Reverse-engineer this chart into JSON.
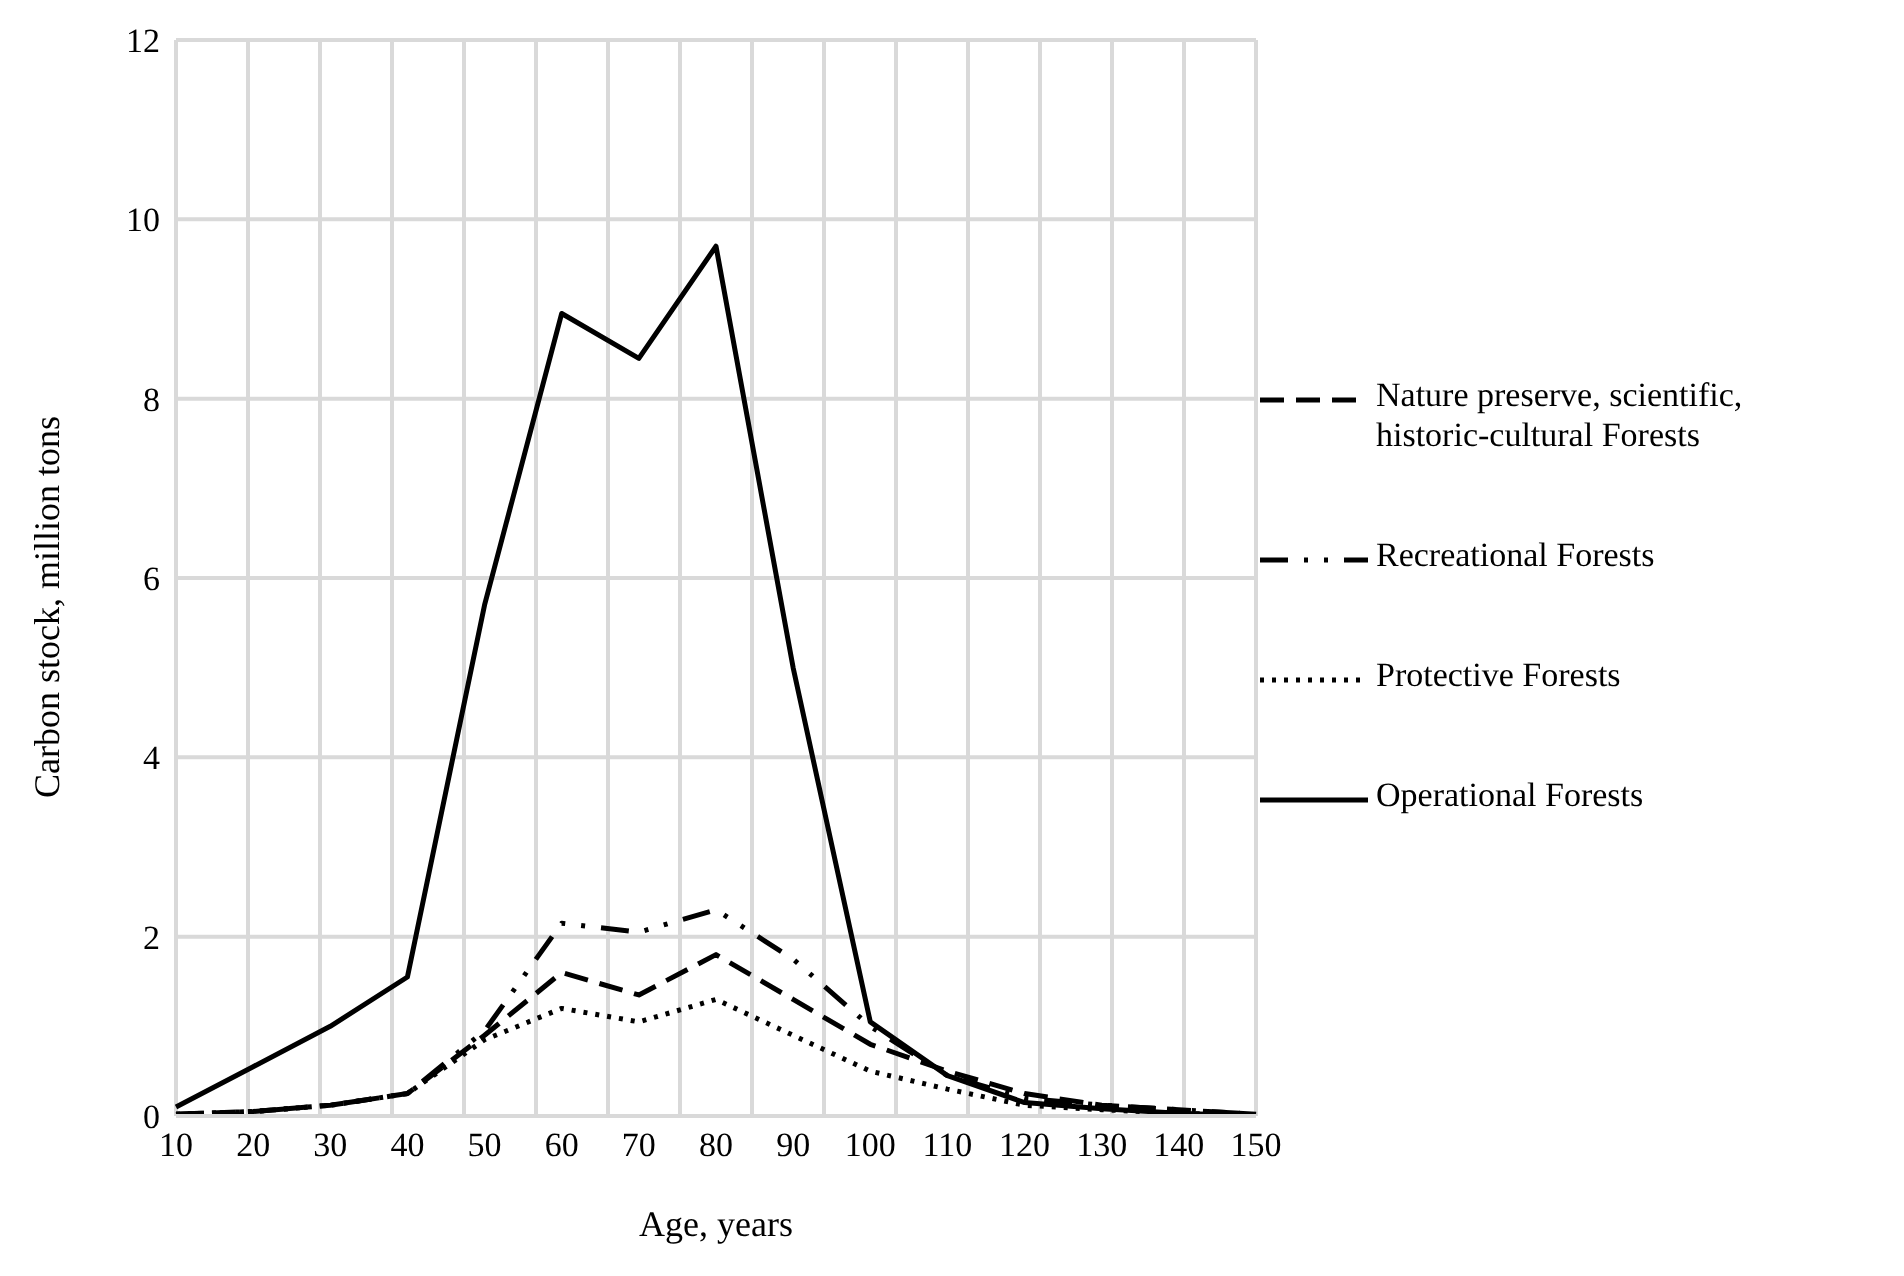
{
  "chart_data": {
    "type": "line",
    "xlabel": "Age, years",
    "ylabel": "Carbon stock, million tons",
    "categories": [
      "10",
      "20",
      "30",
      "40",
      "50",
      "60",
      "70",
      "80",
      "90",
      "100",
      "110",
      "120",
      "130",
      "140",
      "150"
    ],
    "series": [
      {
        "name": "Nature preserve, scientific, historic-cultural Forests",
        "color": "#000000",
        "line_style": "dashed",
        "values": [
          0.02,
          0.05,
          0.12,
          0.25,
          0.9,
          1.6,
          1.35,
          1.8,
          1.3,
          0.8,
          0.5,
          0.25,
          0.12,
          0.07,
          0.02
        ]
      },
      {
        "name": "Recreational Forests",
        "color": "#000000",
        "line_style": "dashdotdot",
        "values": [
          0.02,
          0.05,
          0.12,
          0.25,
          0.95,
          2.15,
          2.05,
          2.3,
          1.75,
          1.0,
          0.45,
          0.2,
          0.12,
          0.07,
          0.02
        ]
      },
      {
        "name": "Protective Forests",
        "color": "#000000",
        "line_style": "dotted",
        "values": [
          0.02,
          0.05,
          0.12,
          0.25,
          0.85,
          1.2,
          1.05,
          1.3,
          0.9,
          0.5,
          0.3,
          0.12,
          0.07,
          0.03,
          0.01
        ]
      },
      {
        "name": "Operational Forests",
        "color": "#000000",
        "line_style": "solid",
        "values": [
          0.1,
          0.55,
          1.0,
          1.55,
          5.7,
          8.95,
          8.45,
          9.7,
          5.0,
          1.05,
          0.45,
          0.15,
          0.08,
          0.03,
          0.0
        ]
      }
    ],
    "ylim": [
      0,
      12
    ],
    "yticks": [
      0,
      2,
      4,
      6,
      8,
      10,
      12
    ],
    "grid": true,
    "legend": "right",
    "marker": "none"
  }
}
